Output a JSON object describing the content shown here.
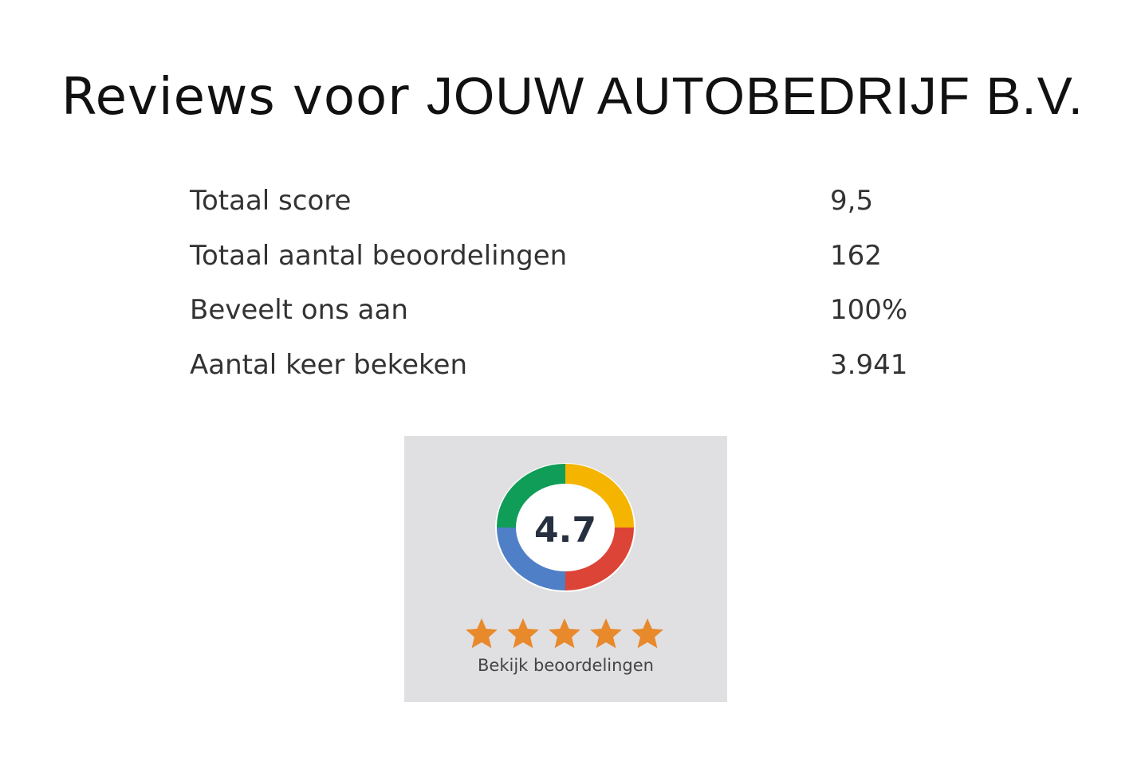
{
  "header": {
    "title_prefix": "Reviews voor",
    "title_brand": "JOUW AUTOBEDRIJF B.V."
  },
  "stats": [
    {
      "label": "Totaal score",
      "value": "9,5"
    },
    {
      "label": "Totaal aantal beoordelingen",
      "value": "162"
    },
    {
      "label": "Beveelt ons aan",
      "value": "100%"
    },
    {
      "label": "Aantal keer bekeken",
      "value": "3.941"
    }
  ],
  "widget": {
    "rating": "4.7",
    "stars": 5,
    "link_label": "Bekijk beoordelingen",
    "colors": {
      "green": "#0f9d58",
      "yellow": "#f4b400",
      "red": "#db4437",
      "blue": "#4f7fc6",
      "star": "#e8892c"
    }
  }
}
